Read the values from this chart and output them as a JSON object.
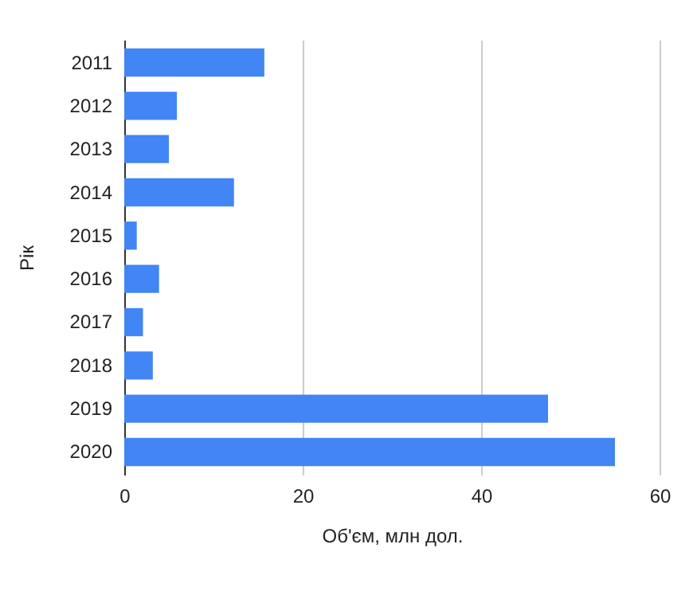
{
  "chart_data": {
    "type": "bar",
    "orientation": "horizontal",
    "xlabel": "Об'єм, млн дол.",
    "ylabel": "Рік",
    "categories": [
      "2011",
      "2012",
      "2013",
      "2014",
      "2015",
      "2016",
      "2017",
      "2018",
      "2019",
      "2020"
    ],
    "values": [
      15.7,
      5.9,
      5.0,
      12.3,
      1.4,
      3.9,
      2.1,
      3.2,
      47.5,
      55.0
    ],
    "color": "#4285f4",
    "xlim": [
      0,
      60
    ],
    "xticks": [
      0,
      20,
      40,
      60
    ],
    "grid": "x"
  }
}
